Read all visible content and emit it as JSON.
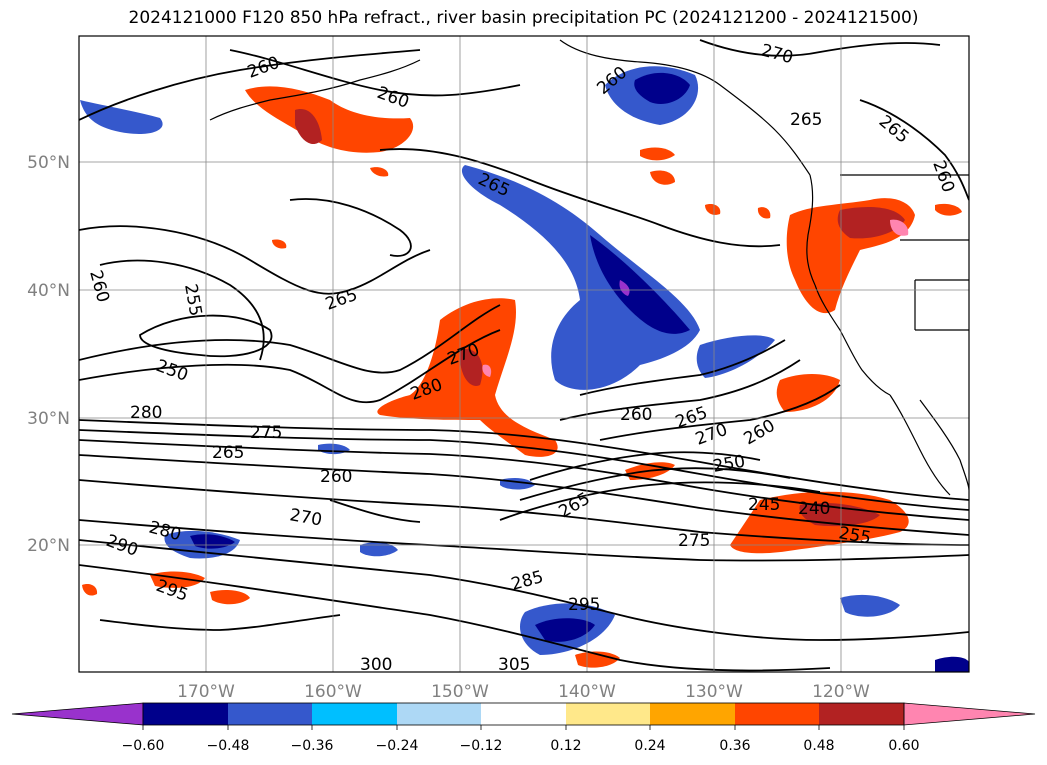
{
  "title": "2024121000 F120 850 hPa refract., river basin precipitation PC (2024121200 - 2024121500)",
  "lat_labels": [
    "50°N",
    "40°N",
    "30°N",
    "20°N"
  ],
  "lon_labels": [
    "170°W",
    "160°W",
    "150°W",
    "140°W",
    "130°W",
    "120°W"
  ],
  "colorbar": {
    "tick_labels": [
      "−0.60",
      "−0.48",
      "−0.36",
      "−0.24",
      "−0.12",
      "0.12",
      "0.24",
      "0.36",
      "0.48",
      "0.60"
    ],
    "colors": [
      "#9932cc",
      "#00008b",
      "#3558cc",
      "#00bfff",
      "#add8f5",
      "#ffffff",
      "#ffe88a",
      "#ffa500",
      "#ff4500",
      "#b22222",
      "#ff85b0"
    ]
  },
  "contour_labels": [
    "260",
    "260",
    "270",
    "260",
    "265",
    "265",
    "265",
    "260",
    "260",
    "255",
    "265",
    "250",
    "280",
    "275",
    "265",
    "280",
    "270",
    "260",
    "265",
    "270",
    "260",
    "250",
    "260",
    "280",
    "270",
    "245",
    "240",
    "255",
    "275",
    "265",
    "290",
    "295",
    "285",
    "295",
    "300",
    "305"
  ],
  "colors": {
    "coast": "#000000",
    "grid": "#888888",
    "axis_label": "#808080"
  }
}
